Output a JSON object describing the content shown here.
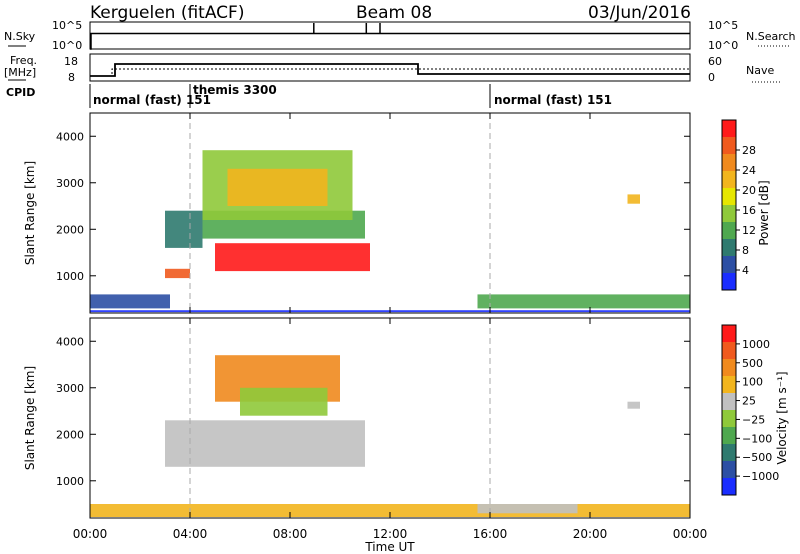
{
  "header": {
    "station": "Kerguelen (fitACF)",
    "beam": "Beam 08",
    "date": "03/Jun/2016"
  },
  "nsky_panel": {
    "left_label": "N.Sky",
    "right_label": "N.Search",
    "tick_hi": "10^5",
    "tick_lo": "10^0",
    "spike_hours": [
      8.95,
      11.05,
      11.6
    ]
  },
  "freq_panel": {
    "left_label_1": "Freq.",
    "left_label_2": "[MHz]",
    "left_tick_hi": "18",
    "left_tick_lo": "8",
    "right_tick_hi": "60",
    "right_tick_lo": "0",
    "right_label": "Nave"
  },
  "cpid_panel": {
    "label": "CPID",
    "modes": [
      {
        "hour": 0,
        "text": "normal (fast) 151"
      },
      {
        "hour": 4,
        "text": "themis 3300"
      },
      {
        "hour": 16,
        "text": "normal (fast) 151"
      }
    ]
  },
  "x_axis": {
    "label": "Time UT",
    "ticks": [
      "00:00",
      "04:00",
      "08:00",
      "12:00",
      "16:00",
      "20:00",
      "00:00"
    ]
  },
  "chart_data": [
    {
      "type": "heatmap",
      "title": "Power",
      "xlabel": "Time UT",
      "ylabel": "Slant Range [km]",
      "xlim": [
        0,
        24
      ],
      "ylim": [
        200,
        4500
      ],
      "y_ticks": [
        1000,
        2000,
        3000,
        4000
      ],
      "colorbar_label": "Power [dB]",
      "colorbar_ticks": [
        "4",
        "8",
        "12",
        "16",
        "20",
        "24",
        "28"
      ],
      "colors": [
        "#1a2dff",
        "#2c4fa4",
        "#2f7a6f",
        "#4fa84f",
        "#8fc93a",
        "#e6e600",
        "#f2b51e",
        "#f08a1e",
        "#f05a1e",
        "#ff1a1a"
      ],
      "regions": [
        {
          "t": [
            0,
            24
          ],
          "r": [
            220,
            260
          ],
          "color": "#1a2dff"
        },
        {
          "t": [
            0,
            3.2
          ],
          "r": [
            300,
            600
          ],
          "color": "#2c4fa4"
        },
        {
          "t": [
            15.5,
            24
          ],
          "r": [
            300,
            600
          ],
          "color": "#4fa84f"
        },
        {
          "t": [
            3.0,
            4.0
          ],
          "r": [
            950,
            1150
          ],
          "color": "#f05a1e"
        },
        {
          "t": [
            3.0,
            4.5
          ],
          "r": [
            1600,
            2400
          ],
          "color": "#2f7a6f"
        },
        {
          "t": [
            4.5,
            11.0
          ],
          "r": [
            1800,
            2400
          ],
          "color": "#4fa84f"
        },
        {
          "t": [
            4.5,
            10.5
          ],
          "r": [
            2200,
            3700
          ],
          "color": "#8fc93a"
        },
        {
          "t": [
            5.5,
            9.5
          ],
          "r": [
            2500,
            3300
          ],
          "color": "#f2b51e"
        },
        {
          "t": [
            5.0,
            11.2
          ],
          "r": [
            1100,
            1700
          ],
          "color": "#ff1a1a"
        },
        {
          "t": [
            21.5,
            22.0
          ],
          "r": [
            2550,
            2750
          ],
          "color": "#f2b51e"
        }
      ]
    },
    {
      "type": "heatmap",
      "title": "Velocity",
      "xlabel": "Time UT",
      "ylabel": "Slant Range [km]",
      "xlim": [
        0,
        24
      ],
      "ylim": [
        200,
        4500
      ],
      "y_ticks": [
        1000,
        2000,
        3000,
        4000
      ],
      "colorbar_label": "Velocity [m s⁻¹]",
      "colorbar_ticks": [
        "1000",
        "500",
        "100",
        "25",
        "−25",
        "−100",
        "−500",
        "−1000"
      ],
      "colors": [
        "#1a2dff",
        "#2c4fa4",
        "#2f7a6f",
        "#4fa84f",
        "#8fc93a",
        "#c0c0c0",
        "#f2b51e",
        "#f08a1e",
        "#f05a1e",
        "#ff1a1a"
      ],
      "regions": [
        {
          "t": [
            0,
            24
          ],
          "r": [
            220,
            500
          ],
          "color": "#f2b51e"
        },
        {
          "t": [
            15.5,
            19.5
          ],
          "r": [
            300,
            500
          ],
          "color": "#c0c0c0"
        },
        {
          "t": [
            3.0,
            11.0
          ],
          "r": [
            1300,
            2300
          ],
          "color": "#c0c0c0"
        },
        {
          "t": [
            5.0,
            10.0
          ],
          "r": [
            2700,
            3700
          ],
          "color": "#f08a1e"
        },
        {
          "t": [
            6.0,
            9.5
          ],
          "r": [
            2400,
            3000
          ],
          "color": "#8fc93a"
        },
        {
          "t": [
            21.5,
            22.0
          ],
          "r": [
            2550,
            2700
          ],
          "color": "#c0c0c0"
        }
      ]
    }
  ]
}
